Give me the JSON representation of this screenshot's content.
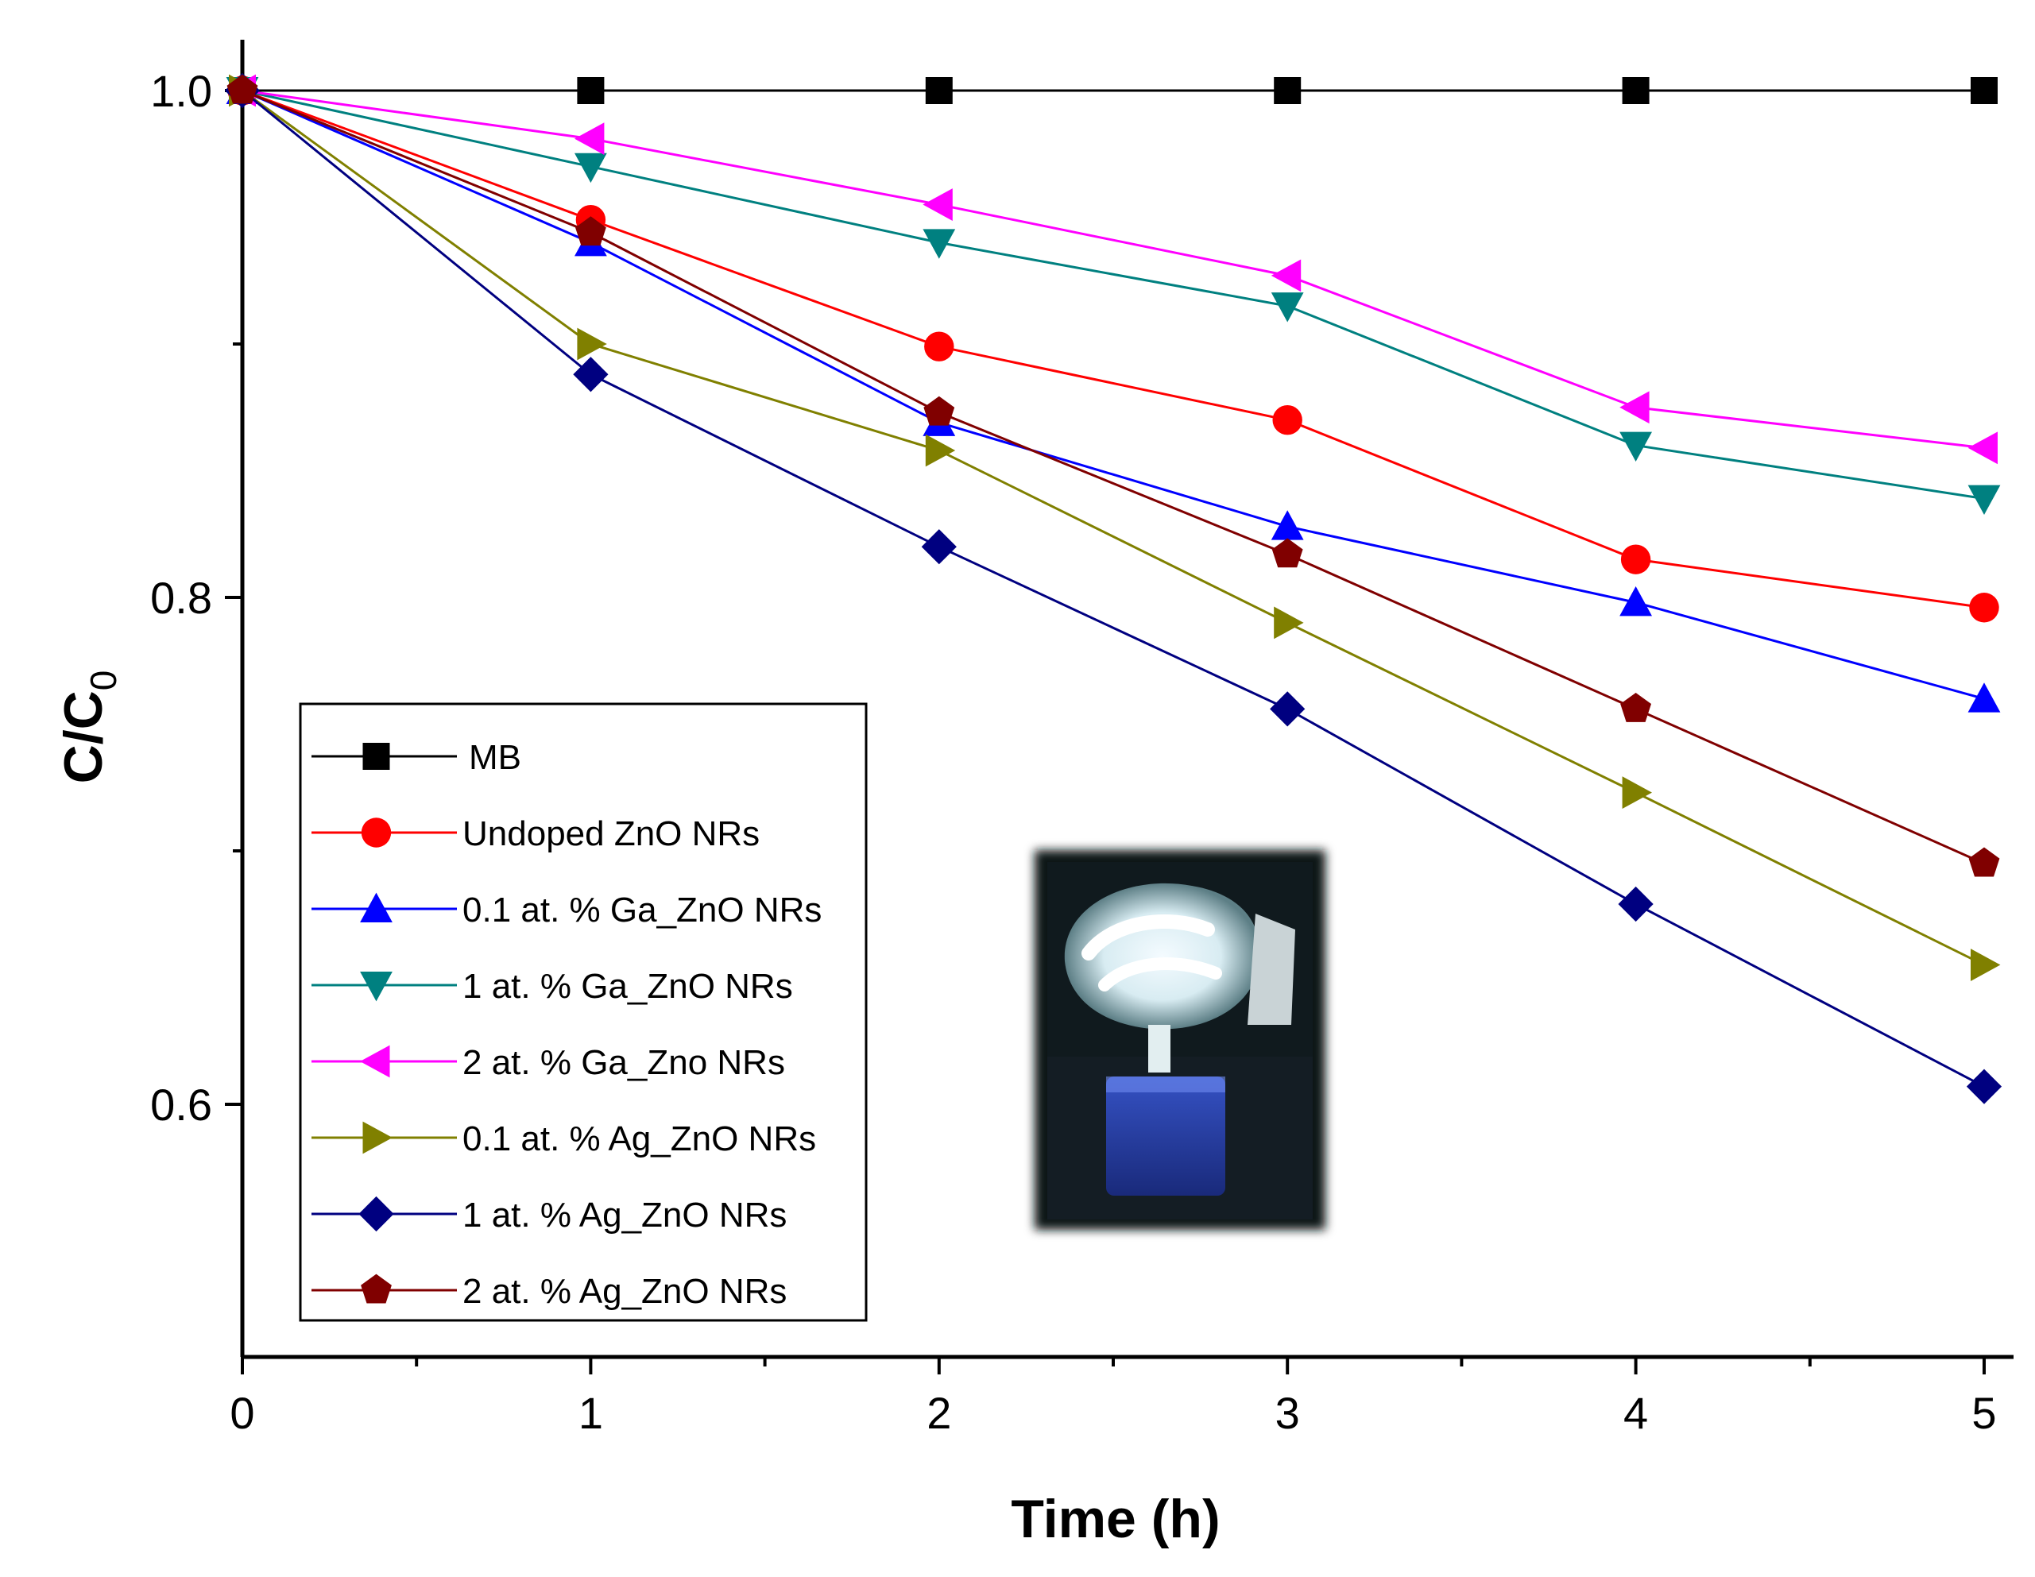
{
  "chart_data": {
    "type": "line",
    "xlabel": "Time (h)",
    "ylabel": "C/C",
    "ylabel_subscript": "0",
    "xlim": [
      0,
      5.1
    ],
    "ylim": [
      0.5,
      1.03
    ],
    "xticks": [
      0,
      1,
      2,
      3,
      4,
      5
    ],
    "yticks": [
      0.6,
      0.8,
      1.0
    ],
    "ytick_labels": [
      "0.6",
      "0.8",
      "1.0"
    ],
    "grid": false,
    "legend_position": "bottom-left",
    "x": [
      0,
      1,
      2,
      3,
      4,
      5
    ],
    "series": [
      {
        "name": "MB",
        "color": "#000000",
        "marker": "square",
        "values": [
          1.0,
          1.0,
          1.0,
          1.0,
          1.0,
          1.0
        ]
      },
      {
        "name": "Undoped ZnO NRs",
        "color": "#ff0000",
        "marker": "circle",
        "values": [
          1.0,
          0.949,
          0.899,
          0.87,
          0.815,
          0.796
        ]
      },
      {
        "name": "0.1 at. % Ga_ZnO NRs",
        "color": "#0000ff",
        "marker": "triangle-up",
        "values": [
          1.0,
          0.94,
          0.869,
          0.828,
          0.798,
          0.76
        ]
      },
      {
        "name": "1 at. % Ga_ZnO NRs",
        "color": "#008080",
        "marker": "triangle-down",
        "values": [
          1.0,
          0.97,
          0.94,
          0.915,
          0.86,
          0.839
        ]
      },
      {
        "name": "2 at. % Ga_Zno NRs",
        "color": "#ff00ff",
        "marker": "triangle-left",
        "values": [
          1.0,
          0.981,
          0.955,
          0.927,
          0.875,
          0.859
        ]
      },
      {
        "name": "0.1 at. % Ag_ZnO NRs",
        "color": "#808000",
        "marker": "triangle-right",
        "values": [
          1.0,
          0.9,
          0.858,
          0.79,
          0.723,
          0.655
        ]
      },
      {
        "name": "1 at. % Ag_ZnO NRs",
        "color": "#000080",
        "marker": "diamond",
        "values": [
          1.0,
          0.888,
          0.82,
          0.756,
          0.679,
          0.607
        ]
      },
      {
        "name": "2 at. % Ag_ZnO NRs",
        "color": "#800000",
        "marker": "pentagon",
        "values": [
          1.0,
          0.944,
          0.873,
          0.817,
          0.756,
          0.695
        ]
      }
    ]
  },
  "inset": {
    "icon": "fluorescent-lamp-photo"
  }
}
